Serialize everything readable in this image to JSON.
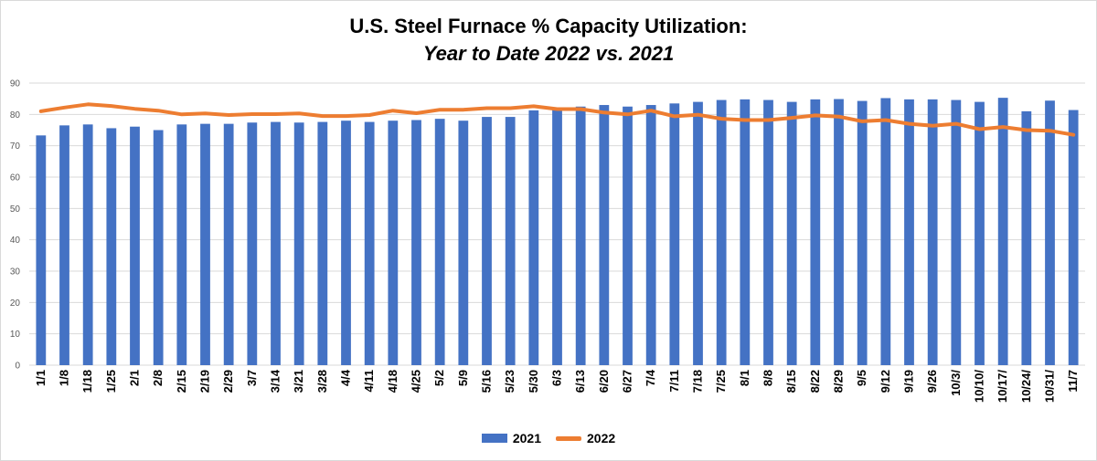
{
  "colors": {
    "series_2021": "#4472C4",
    "series_2022": "#ED7D31",
    "gridline": "#d9d9d9"
  },
  "chart_data": {
    "type": "bar",
    "title": "U.S. Steel Furnace % Capacity Utilization:",
    "subtitle": "Year to Date 2022 vs. 2021",
    "xlabel": "",
    "ylabel": "",
    "ylim": [
      0,
      90
    ],
    "yticks": [
      0,
      10,
      20,
      30,
      40,
      50,
      60,
      70,
      80,
      90
    ],
    "grid": true,
    "legend_position": "bottom",
    "categories": [
      "1/1",
      "1/8",
      "1/18",
      "1/25",
      "2/1",
      "2/8",
      "2/15",
      "2/19",
      "2/29",
      "3/7",
      "3/14",
      "3/21",
      "3/28",
      "4/4",
      "4/11",
      "4/18",
      "4/25",
      "5/2",
      "5/9",
      "5/16",
      "5/23",
      "5/30",
      "6/3",
      "6/13",
      "6/20",
      "6/27",
      "7/4",
      "7/11",
      "7/18",
      "7/25",
      "8/1",
      "8/8",
      "8/15",
      "8/22",
      "8/29",
      "9/5",
      "9/12",
      "9/19",
      "9/26",
      "10/3/",
      "10/10/",
      "10/17/",
      "10/24/",
      "10/31/",
      "11/7"
    ],
    "series": [
      {
        "name": "2021",
        "type": "bar",
        "values": [
          73.3,
          76.5,
          76.8,
          75.6,
          76.1,
          75.0,
          76.8,
          77.0,
          77.0,
          77.4,
          77.6,
          77.4,
          77.6,
          78.0,
          77.6,
          78.0,
          78.2,
          78.6,
          78.0,
          79.2,
          79.2,
          81.3,
          81.7,
          82.5,
          83.0,
          82.5,
          83.0,
          83.5,
          84.0,
          84.6,
          84.8,
          84.6,
          84.0,
          84.8,
          84.9,
          84.3,
          85.2,
          84.8,
          84.8,
          84.6,
          84.0,
          85.3,
          81.0,
          84.4,
          81.4
        ]
      },
      {
        "name": "2022",
        "type": "line",
        "values": [
          81.0,
          82.2,
          83.2,
          82.7,
          81.8,
          81.2,
          80.0,
          80.3,
          79.8,
          80.1,
          80.1,
          80.3,
          79.5,
          79.5,
          79.8,
          81.2,
          80.4,
          81.5,
          81.5,
          82.0,
          82.0,
          82.6,
          81.7,
          81.7,
          80.6,
          80.0,
          81.2,
          79.4,
          79.9,
          78.6,
          78.2,
          78.2,
          78.9,
          79.7,
          79.3,
          77.8,
          78.2,
          77.0,
          76.4,
          77.0,
          75.3,
          76.0,
          75.0,
          74.8,
          73.5
        ]
      }
    ]
  }
}
